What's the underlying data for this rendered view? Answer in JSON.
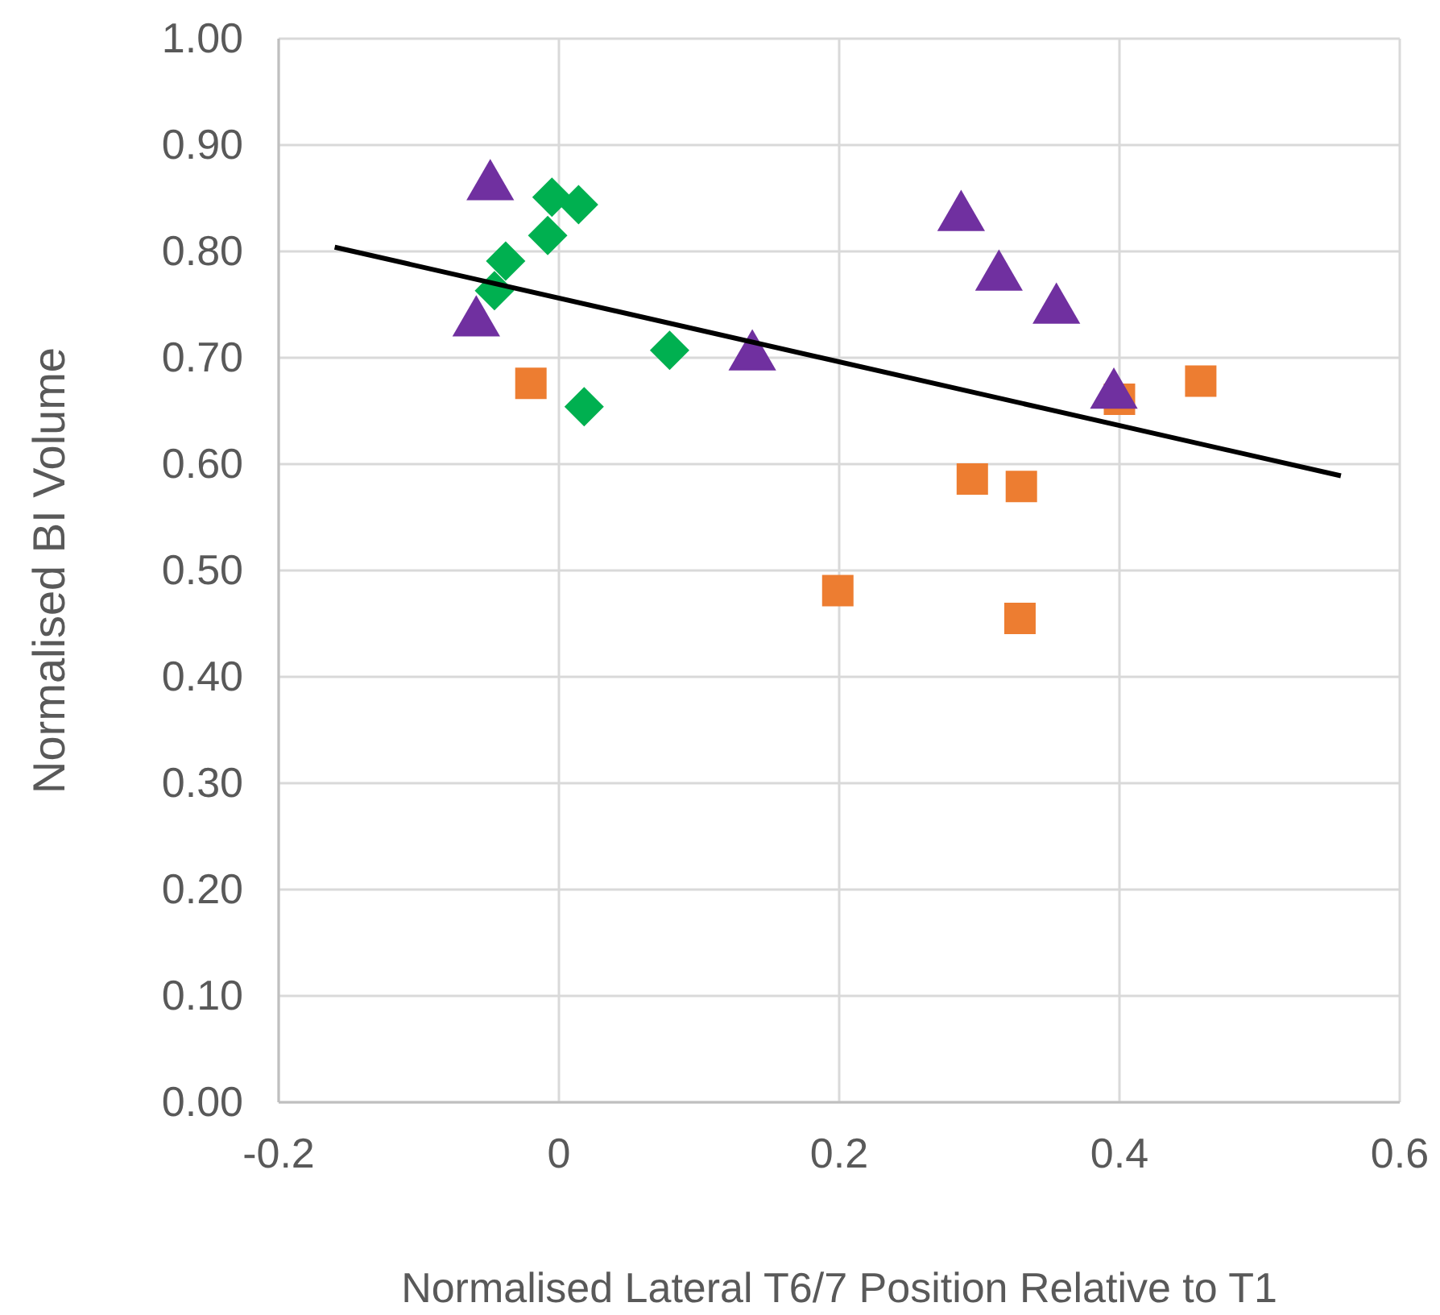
{
  "chart_data": {
    "type": "scatter",
    "xlabel": "Normalised Lateral T6/7 Position Relative to T1",
    "ylabel": "Normalised BI Volume",
    "xlim": [
      -0.2,
      0.6
    ],
    "xticks": [
      -0.2,
      0,
      0.2,
      0.4,
      0.6
    ],
    "ylim": [
      0,
      1
    ],
    "yticks": [
      {
        "value": 0,
        "label": "0.00"
      },
      {
        "value": 0.1,
        "label": "0.10"
      },
      {
        "value": 0.2,
        "label": "0.20"
      },
      {
        "value": 0.3,
        "label": "0.30"
      },
      {
        "value": 0.4,
        "label": "0.40"
      },
      {
        "value": 0.5,
        "label": "0.50"
      },
      {
        "value": 0.6,
        "label": "0.60"
      },
      {
        "value": 0.7,
        "label": "0.70"
      },
      {
        "value": 0.8,
        "label": "0.80"
      },
      {
        "value": 0.9,
        "label": "0.90"
      },
      {
        "value": 1,
        "label": "1.00"
      }
    ],
    "grid": true,
    "series": [
      {
        "marker": "square",
        "color": "#ed7d31",
        "x": [
          -0.02,
          0.199,
          0.295,
          0.33,
          0.329,
          0.4,
          0.458
        ],
        "values": [
          0.676,
          0.481,
          0.586,
          0.579,
          0.455,
          0.661,
          0.678
        ]
      },
      {
        "marker": "diamond",
        "color": "#00b050",
        "x": [
          -0.005,
          0.014,
          -0.008,
          -0.038,
          -0.046,
          0.079,
          0.018
        ],
        "values": [
          0.851,
          0.844,
          0.815,
          0.791,
          0.763,
          0.707,
          0.654
        ]
      },
      {
        "marker": "triangle",
        "color": "#7030a0",
        "x": [
          -0.049,
          -0.059,
          0.138,
          0.287,
          0.314,
          0.355,
          0.396
        ],
        "values": [
          0.861,
          0.733,
          0.701,
          0.832,
          0.776,
          0.745,
          0.665
        ]
      },
      {
        "type": "line",
        "marker": "none",
        "line_style": "solid",
        "color": "#000000",
        "x": [
          -0.16,
          0.558
        ],
        "values": [
          0.804,
          0.589
        ]
      }
    ]
  }
}
